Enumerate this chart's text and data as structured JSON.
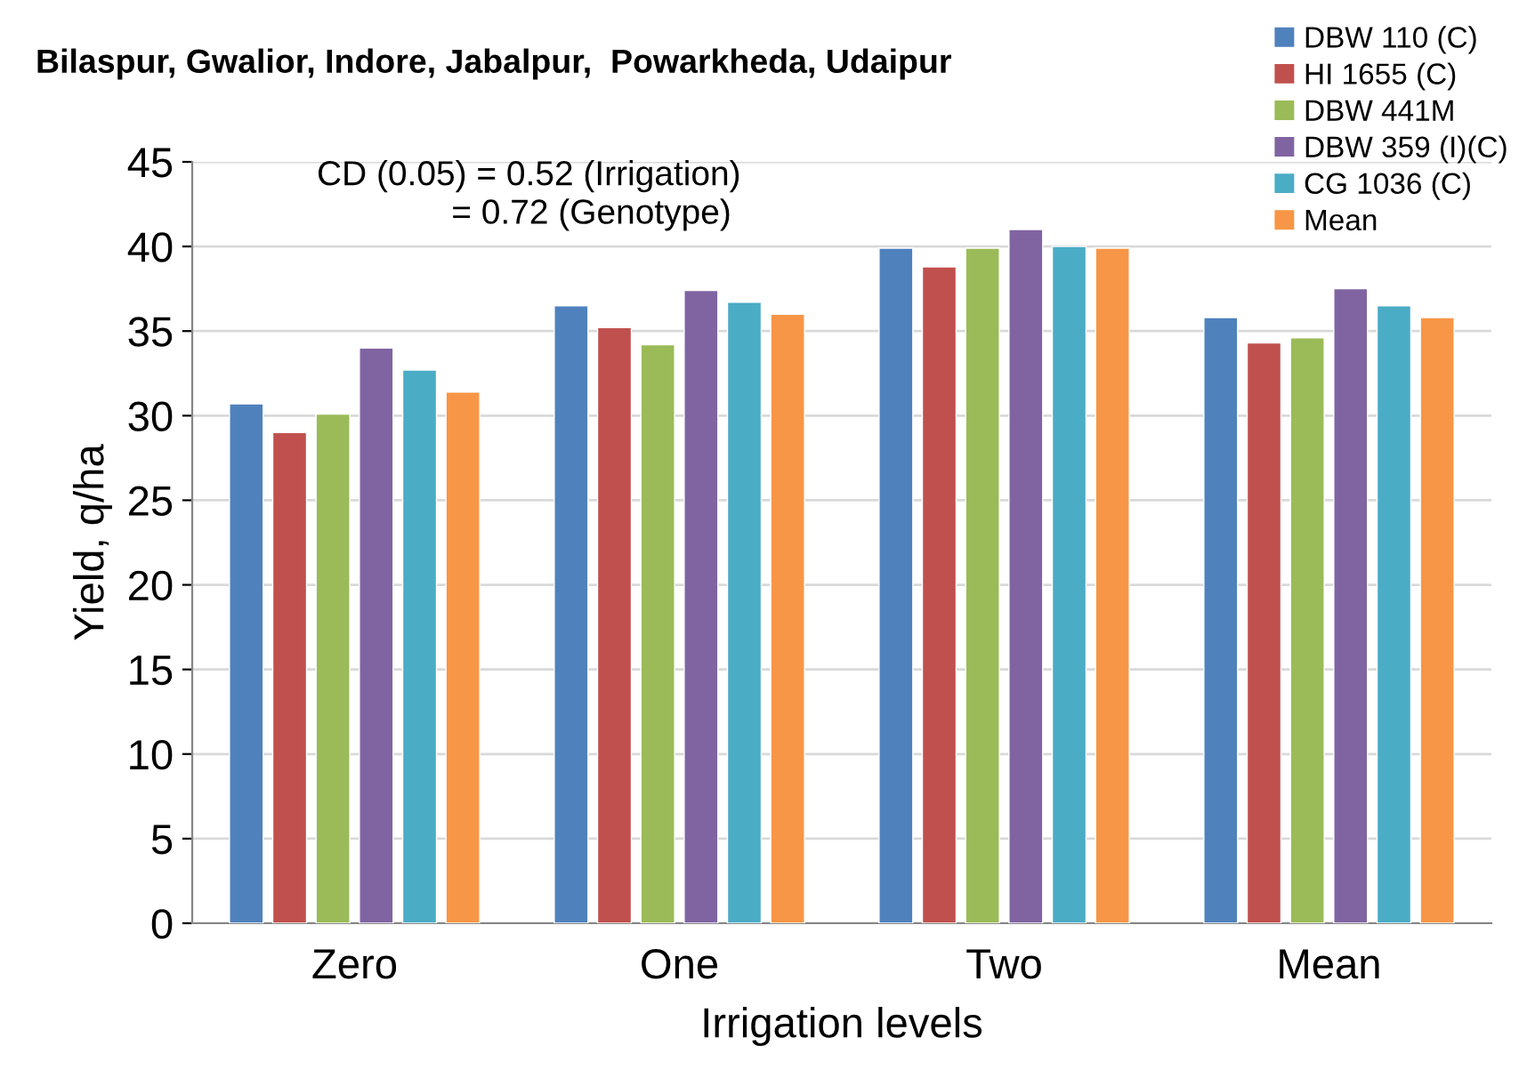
{
  "chart_data": {
    "type": "bar",
    "title": "Bilaspur, Gwalior, Indore, Jabalpur,  Powarkheda, Udaipur",
    "xlabel": "Irrigation levels",
    "ylabel": "Yield, q/ha",
    "categories": [
      "Zero",
      "One",
      "Two",
      "Mean"
    ],
    "series": [
      {
        "name": "DBW 110 (C)",
        "color": "#4f81bd",
        "values": [
          30.7,
          36.5,
          39.9,
          35.8
        ]
      },
      {
        "name": "HI 1655 (C)",
        "color": "#c0504d",
        "values": [
          29.0,
          35.2,
          38.8,
          34.3
        ]
      },
      {
        "name": "DBW 441M",
        "color": "#9bbb59",
        "values": [
          30.1,
          34.2,
          39.9,
          34.6
        ]
      },
      {
        "name": "DBW 359 (I)(C)",
        "color": "#8064a2",
        "values": [
          34.0,
          37.4,
          41.0,
          37.5
        ]
      },
      {
        "name": "CG 1036 (C)",
        "color": "#4bacc6",
        "values": [
          32.7,
          36.7,
          40.0,
          36.5
        ]
      },
      {
        "name": "Mean",
        "color": "#f79646",
        "values": [
          31.4,
          36.0,
          39.9,
          35.8
        ]
      }
    ],
    "ylim": [
      0,
      45
    ],
    "yticks": [
      0,
      5,
      10,
      15,
      20,
      25,
      30,
      35,
      40,
      45
    ],
    "grid": "y",
    "legend": "top right",
    "annotations": [
      "CD (0.05) = 0.52 (Irrigation)\n              = 0.72 (Genotype)"
    ]
  }
}
